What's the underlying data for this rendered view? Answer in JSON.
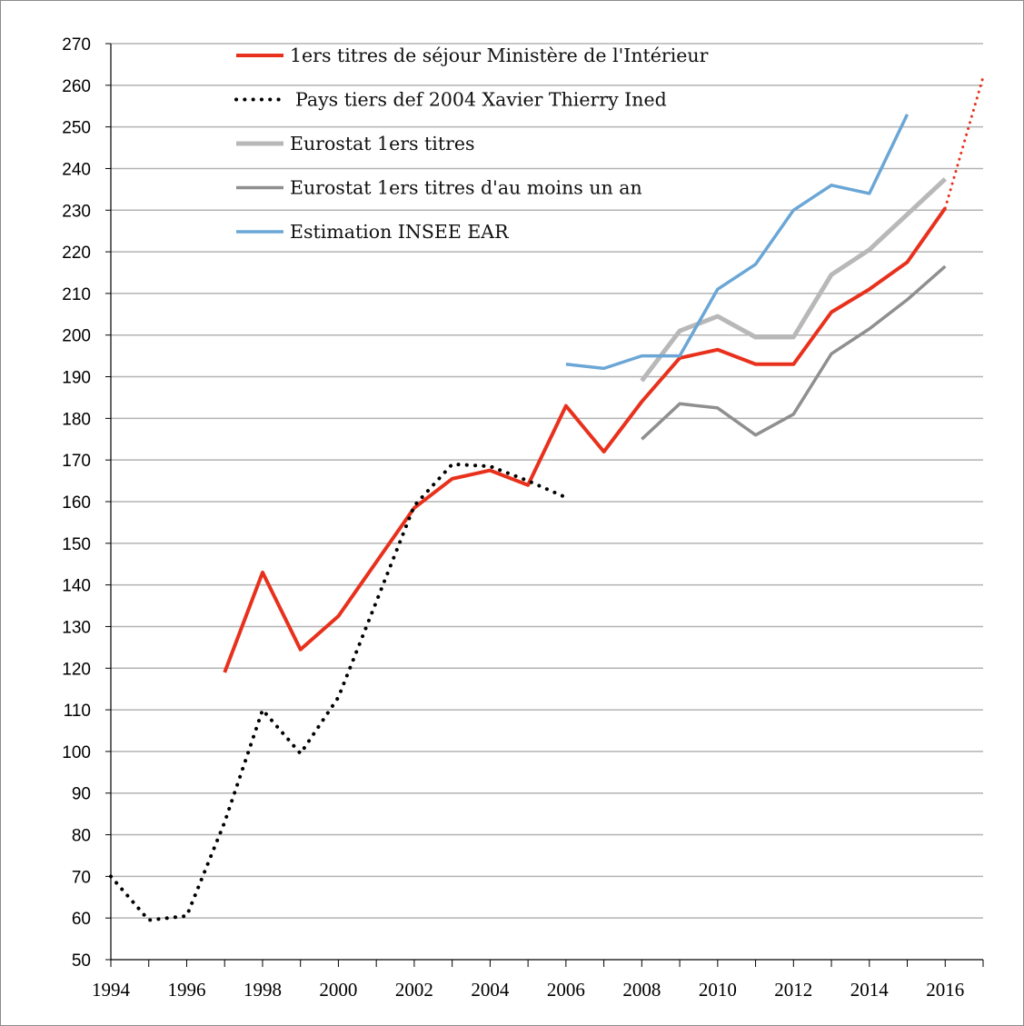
{
  "chart_data": {
    "type": "line",
    "title": "",
    "xlabel": "",
    "ylabel": "",
    "xlim": [
      1994,
      2017
    ],
    "ylim": [
      50,
      270
    ],
    "y_ticks": [
      50,
      60,
      70,
      80,
      90,
      100,
      110,
      120,
      130,
      140,
      150,
      160,
      170,
      180,
      190,
      200,
      210,
      220,
      230,
      240,
      250,
      260,
      270
    ],
    "x_ticks": [
      1994,
      1996,
      1998,
      2000,
      2002,
      2004,
      2006,
      2008,
      2010,
      2012,
      2014,
      2016
    ],
    "grid": "horizontal",
    "legend_position": "top-left",
    "series": [
      {
        "name": "1ers titres de séjour Ministère  de l'Intérieur",
        "color": "#e8311c",
        "style": "solid",
        "width": 4,
        "x": [
          1997,
          1998,
          1999,
          2000,
          2001,
          2002,
          2003,
          2004,
          2005,
          2006,
          2007,
          2008,
          2009,
          2010,
          2011,
          2012,
          2013,
          2014,
          2015,
          2016
        ],
        "y": [
          119,
          143,
          124.5,
          132.5,
          145.5,
          158.5,
          165.5,
          167.5,
          164,
          183,
          172,
          184,
          194.5,
          196.5,
          193,
          193,
          205.5,
          211,
          217.5,
          230.5
        ]
      },
      {
        "name": "",
        "color": "#e8311c",
        "style": "dotted",
        "width": 3,
        "x": [
          2016,
          2017
        ],
        "y": [
          230.5,
          262
        ]
      },
      {
        "name": "Pays tiers def 2004 Xavier Thierry  Ined",
        "color": "#000000",
        "style": "dotted",
        "width": 4,
        "x": [
          1994,
          1995,
          1996,
          1997,
          1998,
          1999,
          2000,
          2001,
          2002,
          2003,
          2004,
          2005,
          2006
        ],
        "y": [
          70,
          59.5,
          60.5,
          83,
          110,
          99.5,
          113,
          136,
          159,
          169,
          168.5,
          165,
          161
        ]
      },
      {
        "name": "Eurostat 1ers titres",
        "color": "#b8b8b8",
        "style": "solid",
        "width": 5,
        "x": [
          2008,
          2009,
          2010,
          2011,
          2012,
          2013,
          2014,
          2015,
          2016
        ],
        "y": [
          189,
          201,
          204.5,
          199.5,
          199.5,
          214.5,
          220.5,
          229,
          237.5
        ]
      },
      {
        "name": "Eurostat 1ers titres d'au moins un an",
        "color": "#8f8f8f",
        "style": "solid",
        "width": 3.5,
        "x": [
          2008,
          2009,
          2010,
          2011,
          2012,
          2013,
          2014,
          2015,
          2016
        ],
        "y": [
          175,
          183.5,
          182.5,
          176,
          181,
          195.5,
          201.5,
          208.5,
          216.5
        ]
      },
      {
        "name": "Estimation INSEE EAR",
        "color": "#6aa6d6",
        "style": "solid",
        "width": 3.5,
        "x": [
          2006,
          2007,
          2008,
          2009,
          2010,
          2011,
          2012,
          2013,
          2014,
          2015
        ],
        "y": [
          193,
          192,
          195,
          195,
          211,
          217,
          230,
          236,
          234,
          253
        ]
      }
    ]
  }
}
